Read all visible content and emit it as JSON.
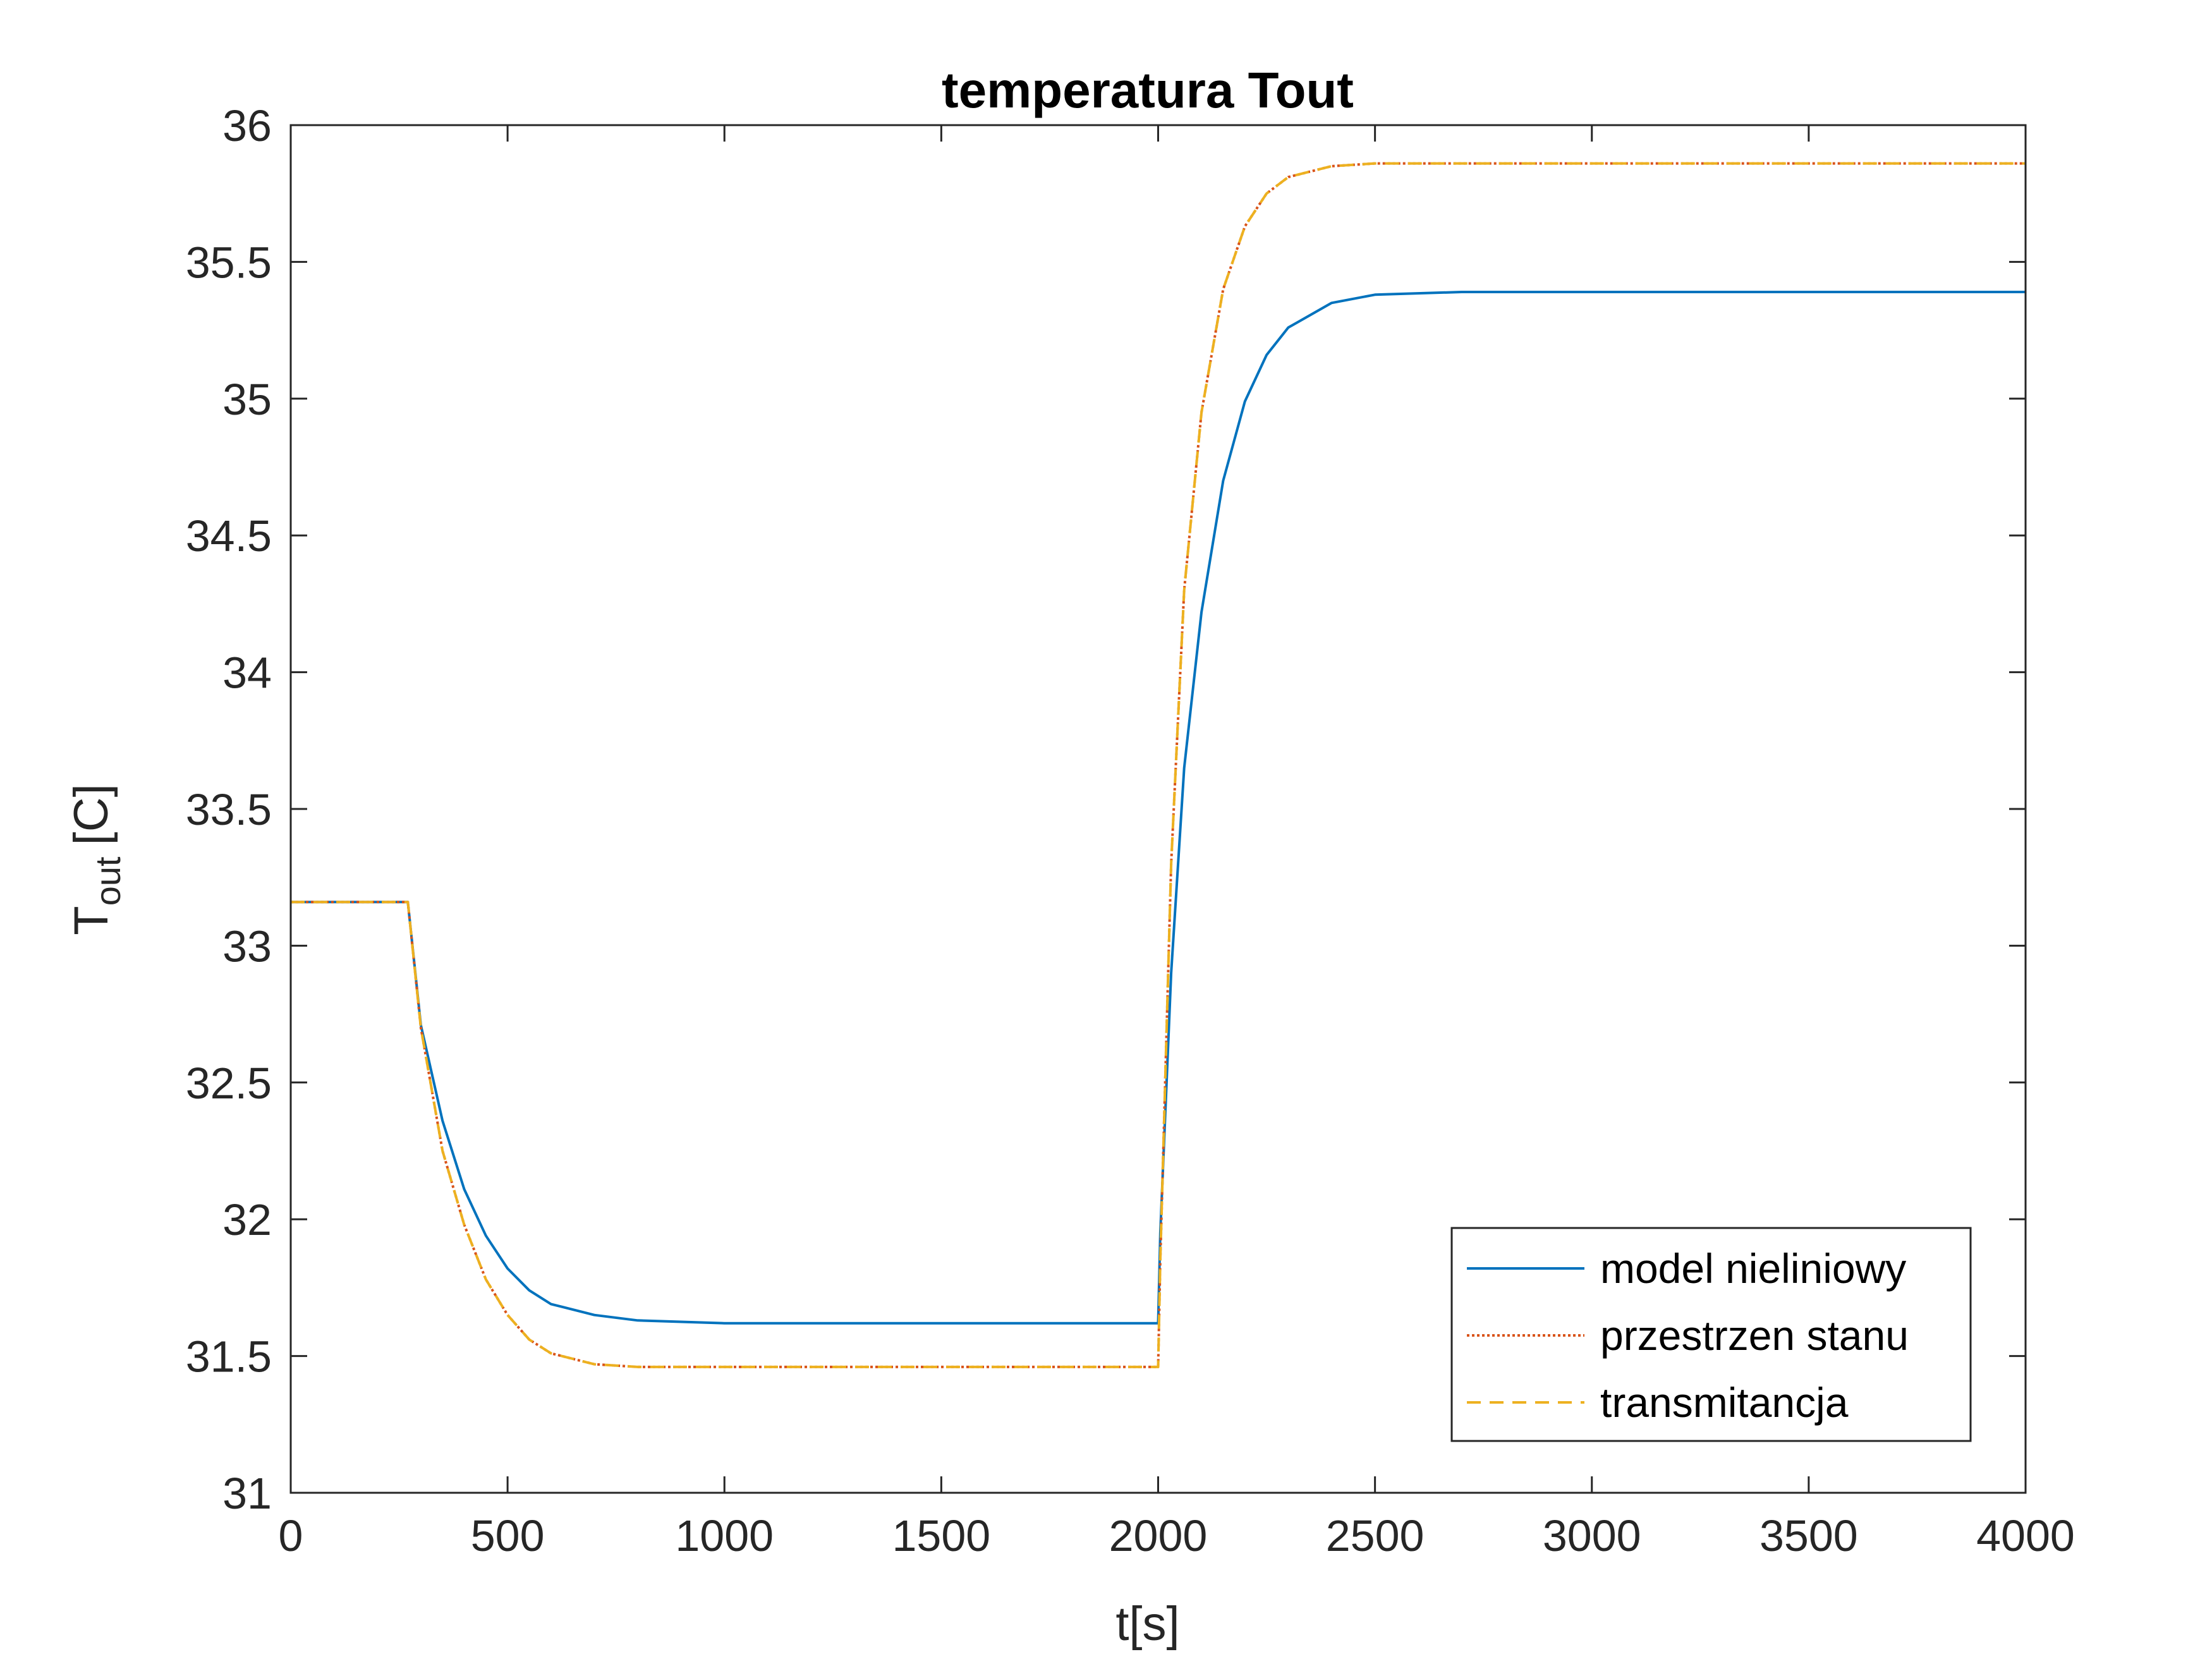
{
  "chart_data": {
    "type": "line",
    "title": "temperatura Tout",
    "xlabel": "t[s]",
    "ylabel": {
      "main": "T",
      "subscript": "out",
      "unit": "[C]"
    },
    "xlim": [
      0,
      4000
    ],
    "ylim": [
      31,
      36
    ],
    "xticks": [
      0,
      500,
      1000,
      1500,
      2000,
      2500,
      3000,
      3500,
      4000
    ],
    "yticks": [
      31,
      31.5,
      32,
      32.5,
      33,
      33.5,
      34,
      34.5,
      35,
      35.5,
      36
    ],
    "xtick_labels": [
      "0",
      "500",
      "1000",
      "1500",
      "2000",
      "2500",
      "3000",
      "3500",
      "4000"
    ],
    "ytick_labels": [
      "31",
      "31.5",
      "32",
      "32.5",
      "33",
      "33.5",
      "34",
      "34.5",
      "35",
      "35.5",
      "36"
    ],
    "grid": false,
    "legend_position": "bottom-right",
    "series": [
      {
        "name": "model nieliniowy",
        "color": "#0072BD",
        "style": "solid",
        "x": [
          0,
          270,
          300,
          350,
          400,
          450,
          500,
          550,
          600,
          700,
          800,
          1000,
          1500,
          2000,
          2005,
          2030,
          2060,
          2100,
          2150,
          2200,
          2250,
          2300,
          2400,
          2500,
          2700,
          3000,
          3500,
          4000
        ],
        "y": [
          33.16,
          33.16,
          32.71,
          32.36,
          32.11,
          31.94,
          31.82,
          31.74,
          31.69,
          31.65,
          31.63,
          31.62,
          31.62,
          31.62,
          31.95,
          32.9,
          33.65,
          34.22,
          34.7,
          34.99,
          35.16,
          35.26,
          35.35,
          35.38,
          35.39,
          35.39,
          35.39,
          35.39
        ]
      },
      {
        "name": "przestrzen stanu",
        "color": "#D95319",
        "style": "dotted",
        "x": [
          0,
          270,
          300,
          350,
          400,
          450,
          500,
          550,
          600,
          700,
          800,
          1000,
          1500,
          1995,
          2000,
          2005,
          2030,
          2060,
          2100,
          2150,
          2200,
          2250,
          2300,
          2400,
          2500,
          2700,
          3000,
          3500,
          4000
        ],
        "y": [
          33.16,
          33.16,
          32.7,
          32.25,
          31.98,
          31.78,
          31.65,
          31.56,
          31.51,
          31.47,
          31.46,
          31.46,
          31.46,
          31.46,
          31.46,
          31.85,
          33.3,
          34.3,
          34.95,
          35.4,
          35.63,
          35.75,
          35.81,
          35.85,
          35.86,
          35.86,
          35.86,
          35.86,
          35.86
        ]
      },
      {
        "name": "transmitancja",
        "color": "#EDB120",
        "style": "dashed",
        "x": [
          0,
          270,
          300,
          350,
          400,
          450,
          500,
          550,
          600,
          700,
          800,
          1000,
          1500,
          1995,
          2000,
          2005,
          2030,
          2060,
          2100,
          2150,
          2200,
          2250,
          2300,
          2400,
          2500,
          2700,
          3000,
          3500,
          4000
        ],
        "y": [
          33.16,
          33.16,
          32.7,
          32.25,
          31.98,
          31.78,
          31.65,
          31.56,
          31.51,
          31.47,
          31.46,
          31.46,
          31.46,
          31.46,
          31.46,
          31.85,
          33.3,
          34.3,
          34.95,
          35.4,
          35.63,
          35.75,
          35.81,
          35.85,
          35.86,
          35.86,
          35.86,
          35.86,
          35.86
        ]
      }
    ]
  }
}
